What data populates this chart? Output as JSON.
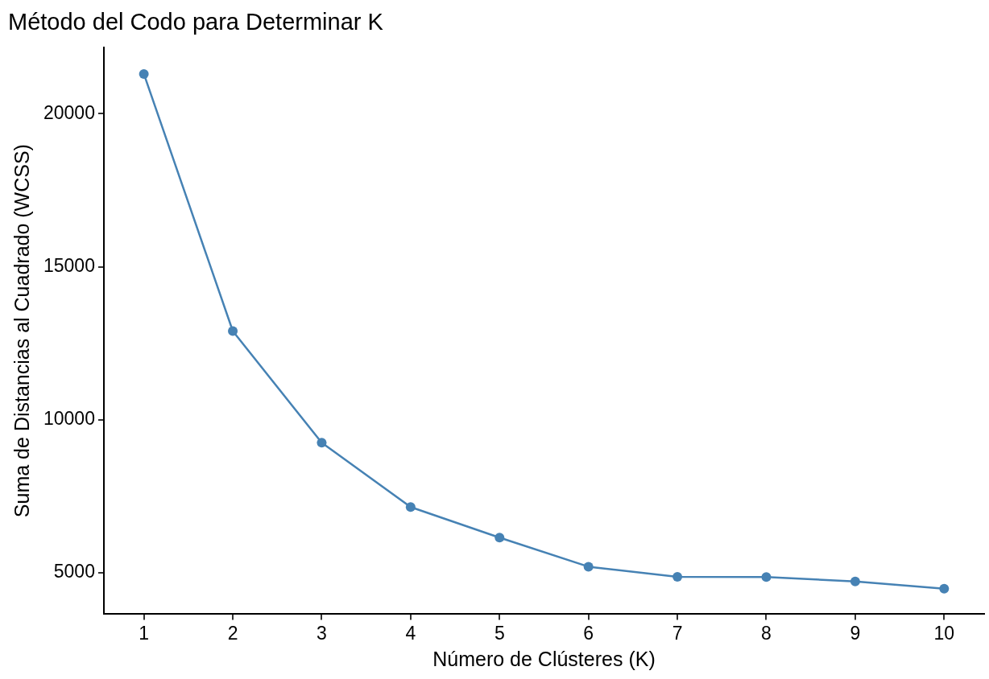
{
  "chart_data": {
    "type": "line",
    "title": "Método del Codo para Determinar K",
    "xlabel": "Número de Clústeres (K)",
    "ylabel": "Suma de Distancias al Cuadrado (WCSS)",
    "x": [
      1,
      2,
      3,
      4,
      5,
      6,
      7,
      8,
      9,
      10
    ],
    "series": [
      {
        "color": "#4682b4",
        "values": [
          21300,
          12900,
          9250,
          7150,
          6150,
          5200,
          4870,
          4860,
          4720,
          4480
        ]
      }
    ],
    "xlim": [
      0.55,
      10.45
    ],
    "xticks": [
      1,
      2,
      3,
      4,
      5,
      6,
      7,
      8,
      9,
      10
    ],
    "ylim": [
      3650,
      22170
    ],
    "yticks": [
      5000,
      10000,
      15000,
      20000
    ],
    "grid": false,
    "legend": false,
    "marker": "circle",
    "line_style": "solid"
  }
}
